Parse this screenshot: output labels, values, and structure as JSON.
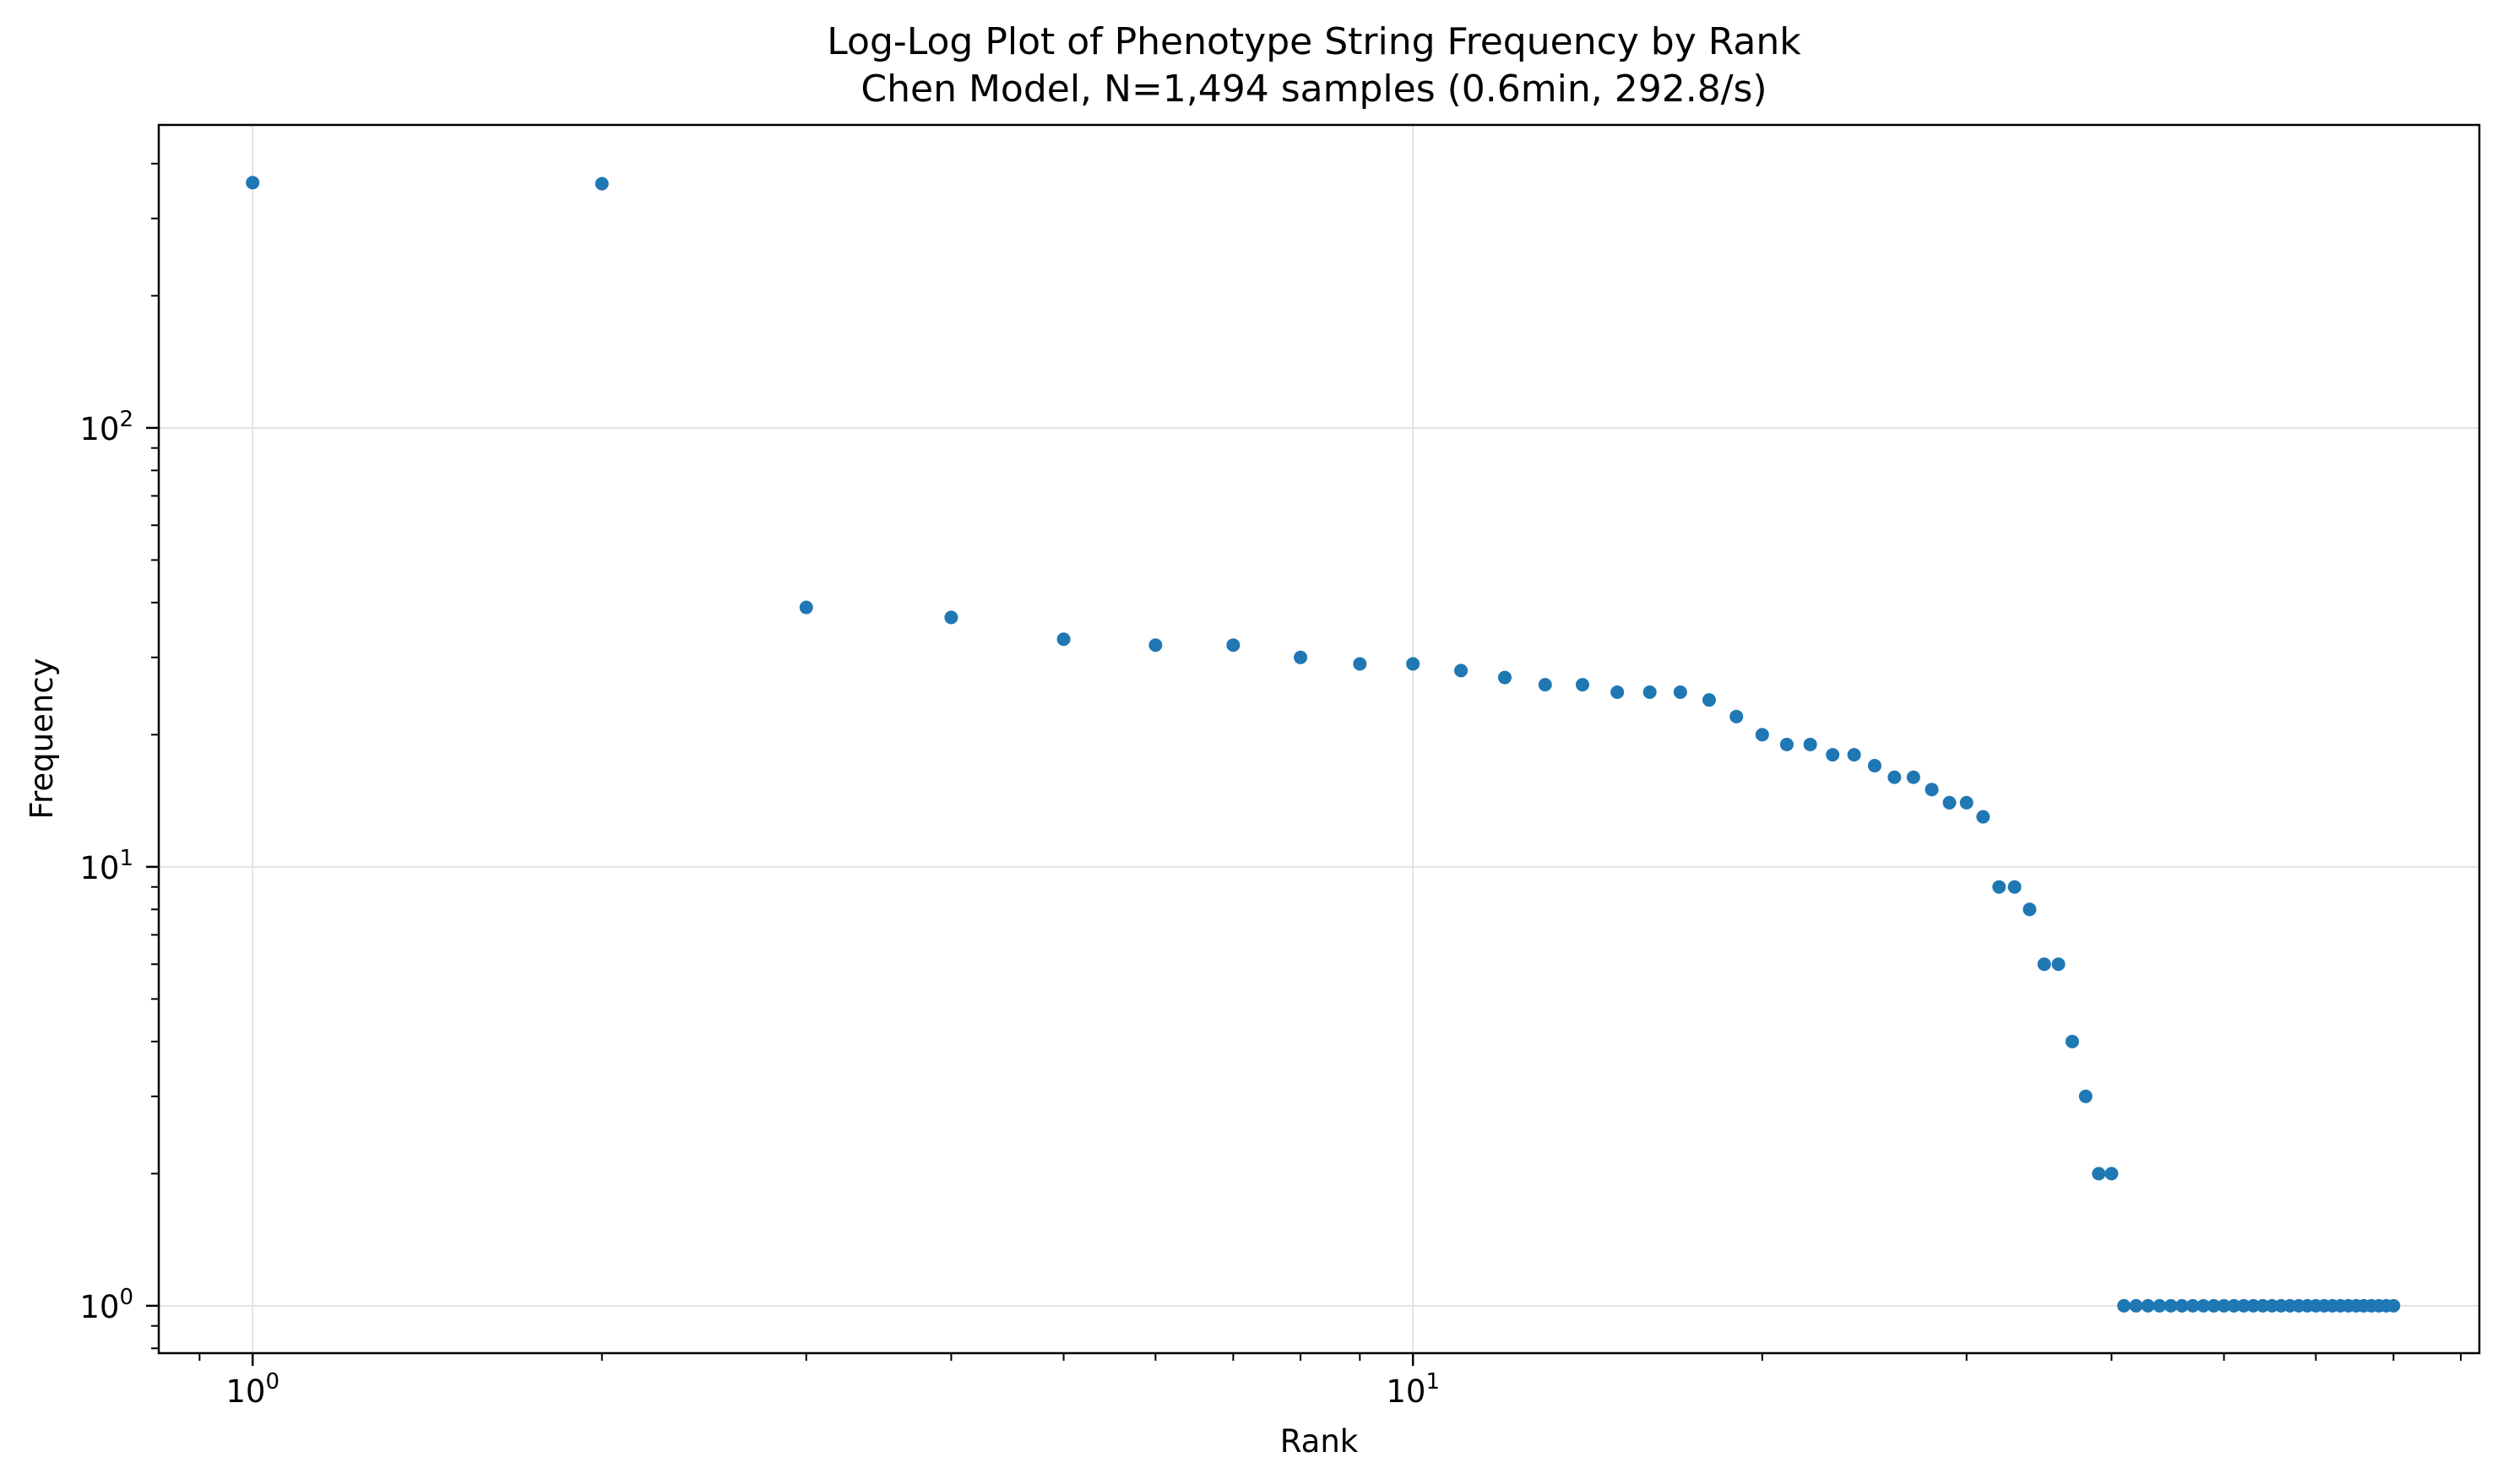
{
  "chart_data": {
    "type": "scatter",
    "title": "Log-Log Plot of Phenotype String Frequency by Rank",
    "subtitle": "Chen Model, N=1,494 samples (0.6min, 292.8/s)",
    "xlabel": "Rank",
    "ylabel": "Frequency",
    "x_scale": "log",
    "y_scale": "log",
    "xlim": [
      0.83,
      83
    ],
    "ylim": [
      0.78,
      490
    ],
    "grid": true,
    "x_major_ticks": [
      {
        "base": "10",
        "exp": "0",
        "value": 1
      },
      {
        "base": "10",
        "exp": "1",
        "value": 10
      }
    ],
    "y_major_ticks": [
      {
        "base": "10",
        "exp": "0",
        "value": 1
      },
      {
        "base": "10",
        "exp": "1",
        "value": 10
      },
      {
        "base": "10",
        "exp": "2",
        "value": 100
      }
    ],
    "marker_color": "#1f77b4",
    "x": [
      1,
      2,
      3,
      4,
      5,
      6,
      7,
      8,
      9,
      10,
      11,
      12,
      13,
      14,
      15,
      16,
      17,
      18,
      19,
      20,
      21,
      22,
      23,
      24,
      25,
      26,
      27,
      28,
      29,
      30,
      31,
      32,
      33,
      34,
      35,
      36,
      37,
      38,
      39,
      40,
      41,
      42,
      43,
      44,
      45,
      46,
      47,
      48,
      49,
      50,
      51,
      52,
      53,
      54,
      55,
      56,
      57,
      58,
      59,
      60,
      61,
      62,
      63,
      64,
      65,
      66,
      67,
      68,
      69,
      70
    ],
    "y": [
      362,
      360,
      39,
      37,
      33,
      32,
      32,
      30,
      29,
      29,
      28,
      27,
      26,
      26,
      25,
      25,
      25,
      24,
      22,
      20,
      19,
      19,
      18,
      18,
      17,
      16,
      16,
      15,
      14,
      14,
      13,
      9,
      9,
      8,
      6,
      6,
      4,
      3,
      2,
      2,
      1,
      1,
      1,
      1,
      1,
      1,
      1,
      1,
      1,
      1,
      1,
      1,
      1,
      1,
      1,
      1,
      1,
      1,
      1,
      1,
      1,
      1,
      1,
      1,
      1,
      1,
      1,
      1,
      1,
      1
    ]
  }
}
